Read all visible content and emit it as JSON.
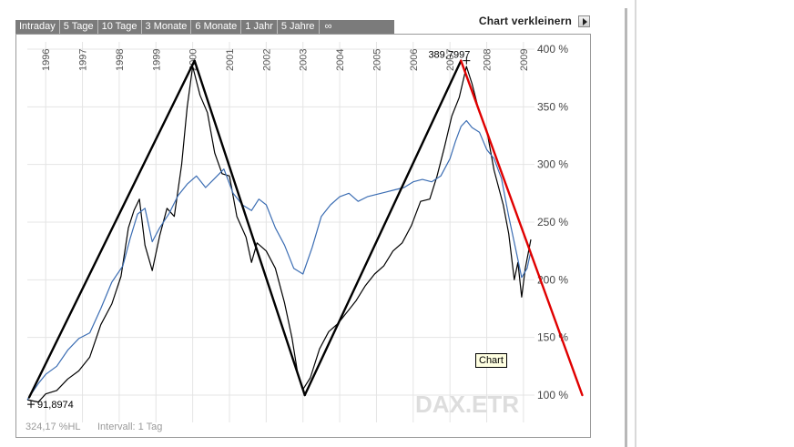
{
  "toolbar": {
    "tabs": [
      "Intraday",
      "5 Tage",
      "10 Tage",
      "3 Monate",
      "6 Monate",
      "1 Jahr",
      "5 Jahre",
      "∞"
    ],
    "shrink_label": "Chart verkleinern"
  },
  "footer": {
    "performance": "324,17 %HL",
    "interval": "Intervall: 1 Tag"
  },
  "tooltip": "Chart",
  "colors": {
    "index_line": "#000000",
    "comparison_line": "#3b6db3",
    "trend_lines": "#000000",
    "downtrend_line": "#e00000",
    "watermark": "#dddddd"
  },
  "chart_data": {
    "type": "line",
    "watermark": "DAX.ETR",
    "x_ticks": [
      "1996",
      "1997",
      "1998",
      "1999",
      "2000",
      "2001",
      "2002",
      "2003",
      "2004",
      "2005",
      "2006",
      "2007",
      "2008",
      "2009"
    ],
    "y_ticks": [
      "100 %",
      "150 %",
      "200 %",
      "250 %",
      "300 %",
      "350 %",
      "400 %"
    ],
    "ylim": [
      100,
      400
    ],
    "xlim": [
      1995.5,
      2009.3
    ],
    "grid": true,
    "annotations": [
      {
        "text": "91,8974",
        "x": 1995.6,
        "y": 92
      },
      {
        "text": "389,7997",
        "x": 2007.45,
        "y": 390
      }
    ],
    "series": [
      {
        "x": [
          1995.5,
          1995.8,
          1996.0,
          1996.3,
          1996.6,
          1996.9,
          1997.2,
          1997.5,
          1997.8,
          1998.05,
          1998.25,
          1998.4,
          1998.55,
          1998.7,
          1998.9,
          1999.1,
          1999.3,
          1999.5,
          1999.7,
          1999.85,
          2000.0,
          2000.2,
          2000.4,
          2000.6,
          2000.8,
          2001.0,
          2001.2,
          2001.45,
          2001.6,
          2001.75,
          2002.0,
          2002.25,
          2002.5,
          2002.7,
          2002.85,
          2003.0,
          2003.2,
          2003.45,
          2003.7,
          2003.95,
          2004.2,
          2004.45,
          2004.7,
          2004.95,
          2005.2,
          2005.45,
          2005.7,
          2005.95,
          2006.2,
          2006.45,
          2006.65,
          2006.85,
          2007.05,
          2007.25,
          2007.45,
          2007.6,
          2007.8,
          2008.0,
          2008.2,
          2008.45,
          2008.6,
          2008.75,
          2008.85,
          2008.95,
          2009.05,
          2009.2
        ],
        "values": [
          96,
          94,
          101,
          104,
          114,
          121,
          133,
          161,
          179,
          203,
          245,
          260,
          270,
          230,
          208,
          238,
          262,
          255,
          300,
          350,
          385,
          360,
          345,
          310,
          292,
          290,
          255,
          237,
          215,
          232,
          225,
          210,
          180,
          150,
          120,
          105,
          115,
          140,
          155,
          162,
          172,
          182,
          195,
          205,
          212,
          225,
          232,
          247,
          268,
          270,
          290,
          315,
          342,
          358,
          385,
          370,
          345,
          330,
          295,
          265,
          240,
          200,
          215,
          185,
          210,
          235
        ]
      },
      {
        "x": [
          1995.5,
          1995.8,
          1996.0,
          1996.3,
          1996.6,
          1996.9,
          1997.2,
          1997.5,
          1997.8,
          1998.1,
          1998.3,
          1998.5,
          1998.7,
          1998.9,
          1999.1,
          1999.35,
          1999.6,
          1999.85,
          2000.1,
          2000.35,
          2000.6,
          2000.85,
          2001.1,
          2001.35,
          2001.6,
          2001.8,
          2002.0,
          2002.25,
          2002.5,
          2002.75,
          2003.0,
          2003.25,
          2003.5,
          2003.75,
          2004.0,
          2004.25,
          2004.5,
          2004.75,
          2005.0,
          2005.25,
          2005.5,
          2005.75,
          2006.0,
          2006.25,
          2006.5,
          2006.75,
          2007.0,
          2007.15,
          2007.3,
          2007.45,
          2007.6,
          2007.8,
          2008.0,
          2008.2,
          2008.4,
          2008.6,
          2008.8,
          2008.95,
          2009.1,
          2009.2
        ],
        "values": [
          96,
          110,
          118,
          125,
          139,
          149,
          154,
          175,
          198,
          212,
          236,
          257,
          262,
          233,
          245,
          257,
          273,
          283,
          290,
          280,
          288,
          296,
          275,
          265,
          260,
          270,
          265,
          245,
          230,
          210,
          205,
          228,
          255,
          265,
          272,
          275,
          268,
          272,
          274,
          276,
          278,
          280,
          285,
          287,
          285,
          290,
          305,
          320,
          333,
          338,
          332,
          328,
          313,
          305,
          288,
          255,
          225,
          202,
          210,
          225
        ]
      }
    ],
    "trend_lines": [
      [
        [
          1995.55,
          98
        ],
        [
          2000.05,
          390
        ]
      ],
      [
        [
          2000.05,
          390
        ],
        [
          2003.05,
          100
        ]
      ],
      [
        [
          2003.05,
          100
        ],
        [
          2007.3,
          390
        ]
      ]
    ],
    "downtrend": [
      [
        2007.3,
        390
      ],
      [
        2010.6,
        100
      ]
    ]
  }
}
